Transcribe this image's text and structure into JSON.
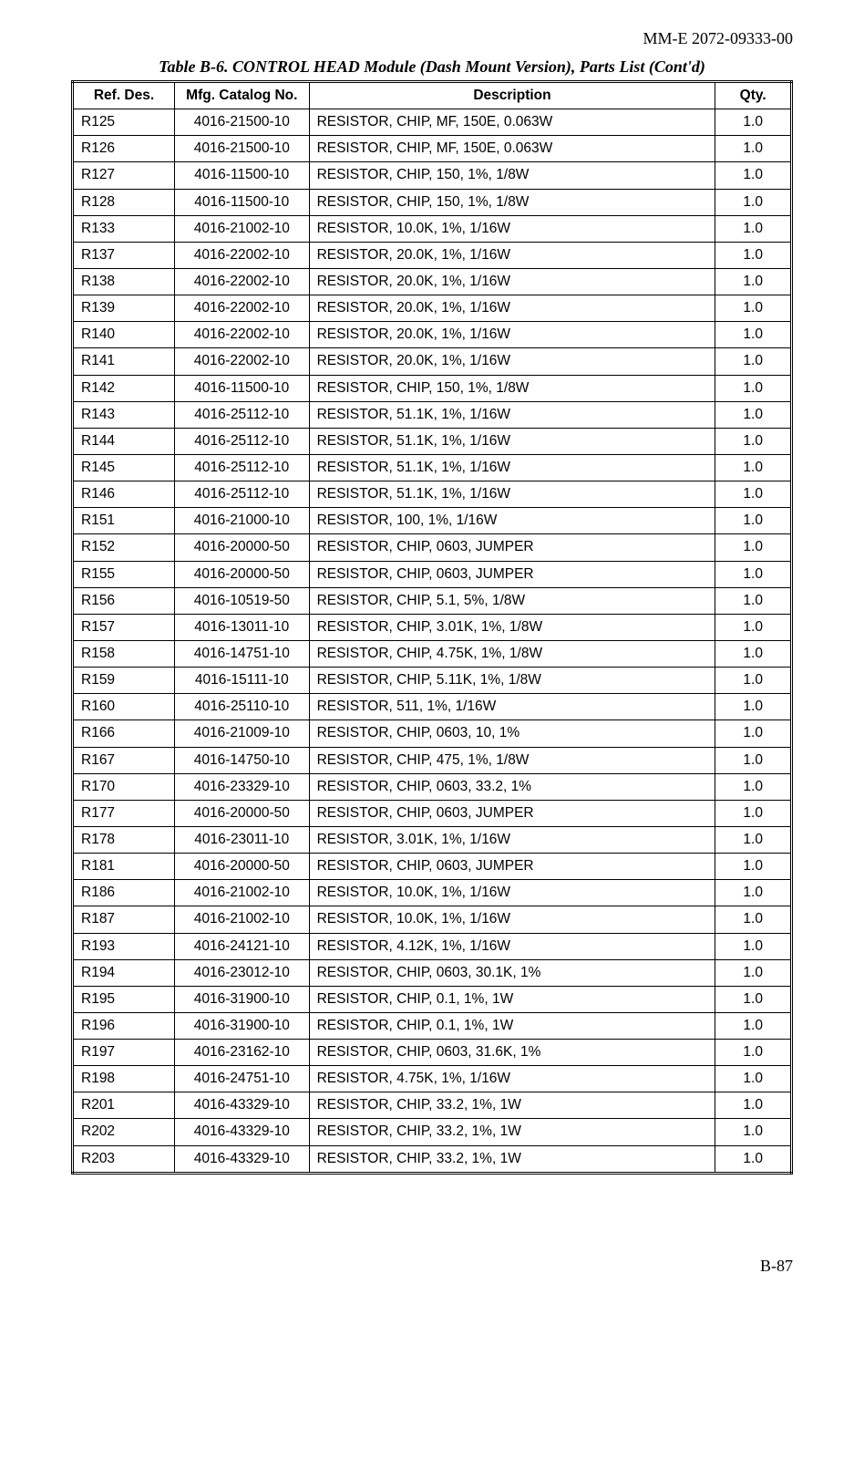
{
  "document": {
    "doc_id": "MM-E 2072-09333-00",
    "table_title": "Table B-6. CONTROL HEAD Module (Dash Mount Version), Parts List (Cont'd)",
    "page_number": "B-87"
  },
  "table": {
    "columns": [
      "Ref. Des.",
      "Mfg. Catalog No.",
      "Description",
      "Qty."
    ],
    "column_align": [
      "left",
      "center",
      "left",
      "center"
    ],
    "font_family_header": "Arial",
    "font_family_body": "Arial",
    "header_fontsize": 15.5,
    "body_fontsize": 15.5,
    "border_color": "#000000",
    "outer_border_style": "double",
    "rows": [
      [
        "R125",
        "4016-21500-10",
        "RESISTOR, CHIP, MF, 150E, 0.063W",
        "1.0"
      ],
      [
        "R126",
        "4016-21500-10",
        "RESISTOR, CHIP, MF, 150E, 0.063W",
        "1.0"
      ],
      [
        "R127",
        "4016-11500-10",
        "RESISTOR, CHIP, 150, 1%, 1/8W",
        "1.0"
      ],
      [
        "R128",
        "4016-11500-10",
        "RESISTOR, CHIP, 150, 1%, 1/8W",
        "1.0"
      ],
      [
        "R133",
        "4016-21002-10",
        "RESISTOR, 10.0K, 1%, 1/16W",
        "1.0"
      ],
      [
        "R137",
        "4016-22002-10",
        "RESISTOR, 20.0K, 1%, 1/16W",
        "1.0"
      ],
      [
        "R138",
        "4016-22002-10",
        "RESISTOR, 20.0K, 1%, 1/16W",
        "1.0"
      ],
      [
        "R139",
        "4016-22002-10",
        "RESISTOR, 20.0K, 1%, 1/16W",
        "1.0"
      ],
      [
        "R140",
        "4016-22002-10",
        "RESISTOR, 20.0K, 1%, 1/16W",
        "1.0"
      ],
      [
        "R141",
        "4016-22002-10",
        "RESISTOR, 20.0K, 1%, 1/16W",
        "1.0"
      ],
      [
        "R142",
        "4016-11500-10",
        "RESISTOR, CHIP, 150, 1%, 1/8W",
        "1.0"
      ],
      [
        "R143",
        "4016-25112-10",
        "RESISTOR, 51.1K, 1%, 1/16W",
        "1.0"
      ],
      [
        "R144",
        "4016-25112-10",
        "RESISTOR, 51.1K, 1%, 1/16W",
        "1.0"
      ],
      [
        "R145",
        "4016-25112-10",
        "RESISTOR, 51.1K, 1%, 1/16W",
        "1.0"
      ],
      [
        "R146",
        "4016-25112-10",
        "RESISTOR, 51.1K, 1%, 1/16W",
        "1.0"
      ],
      [
        "R151",
        "4016-21000-10",
        "RESISTOR, 100, 1%, 1/16W",
        "1.0"
      ],
      [
        "R152",
        "4016-20000-50",
        "RESISTOR, CHIP, 0603, JUMPER",
        "1.0"
      ],
      [
        "R155",
        "4016-20000-50",
        "RESISTOR, CHIP, 0603, JUMPER",
        "1.0"
      ],
      [
        "R156",
        "4016-10519-50",
        "RESISTOR, CHIP, 5.1, 5%, 1/8W",
        "1.0"
      ],
      [
        "R157",
        "4016-13011-10",
        "RESISTOR, CHIP, 3.01K, 1%, 1/8W",
        "1.0"
      ],
      [
        "R158",
        "4016-14751-10",
        "RESISTOR, CHIP, 4.75K, 1%, 1/8W",
        "1.0"
      ],
      [
        "R159",
        "4016-15111-10",
        "RESISTOR, CHIP, 5.11K, 1%, 1/8W",
        "1.0"
      ],
      [
        "R160",
        "4016-25110-10",
        "RESISTOR, 511, 1%, 1/16W",
        "1.0"
      ],
      [
        "R166",
        "4016-21009-10",
        "RESISTOR, CHIP, 0603, 10, 1%",
        "1.0"
      ],
      [
        "R167",
        "4016-14750-10",
        "RESISTOR, CHIP, 475, 1%, 1/8W",
        "1.0"
      ],
      [
        "R170",
        "4016-23329-10",
        "RESISTOR, CHIP, 0603, 33.2, 1%",
        "1.0"
      ],
      [
        "R177",
        "4016-20000-50",
        "RESISTOR, CHIP, 0603, JUMPER",
        "1.0"
      ],
      [
        "R178",
        "4016-23011-10",
        "RESISTOR, 3.01K, 1%, 1/16W",
        "1.0"
      ],
      [
        "R181",
        "4016-20000-50",
        "RESISTOR, CHIP, 0603, JUMPER",
        "1.0"
      ],
      [
        "R186",
        "4016-21002-10",
        "RESISTOR, 10.0K, 1%, 1/16W",
        "1.0"
      ],
      [
        "R187",
        "4016-21002-10",
        "RESISTOR, 10.0K, 1%, 1/16W",
        "1.0"
      ],
      [
        "R193",
        "4016-24121-10",
        "RESISTOR, 4.12K, 1%, 1/16W",
        "1.0"
      ],
      [
        "R194",
        "4016-23012-10",
        "RESISTOR, CHIP, 0603, 30.1K, 1%",
        "1.0"
      ],
      [
        "R195",
        "4016-31900-10",
        "RESISTOR, CHIP, 0.1, 1%, 1W",
        "1.0"
      ],
      [
        "R196",
        "4016-31900-10",
        "RESISTOR, CHIP, 0.1, 1%, 1W",
        "1.0"
      ],
      [
        "R197",
        "4016-23162-10",
        "RESISTOR, CHIP, 0603, 31.6K, 1%",
        "1.0"
      ],
      [
        "R198",
        "4016-24751-10",
        "RESISTOR, 4.75K, 1%, 1/16W",
        "1.0"
      ],
      [
        "R201",
        "4016-43329-10",
        "RESISTOR, CHIP, 33.2, 1%, 1W",
        "1.0"
      ],
      [
        "R202",
        "4016-43329-10",
        "RESISTOR, CHIP, 33.2, 1%, 1W",
        "1.0"
      ],
      [
        "R203",
        "4016-43329-10",
        "RESISTOR, CHIP, 33.2, 1%, 1W",
        "1.0"
      ]
    ]
  }
}
